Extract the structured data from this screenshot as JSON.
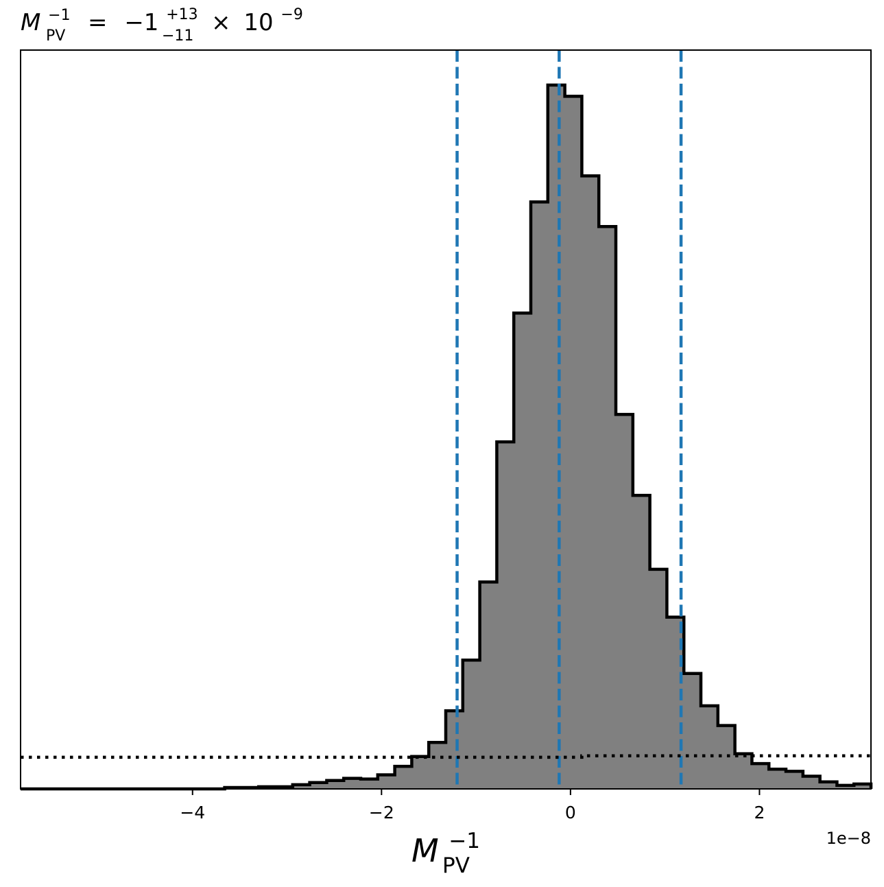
{
  "chart_data": {
    "type": "histogram",
    "title": {
      "symbol": "M",
      "sub": "PV",
      "sup": "−1",
      "equals": "=",
      "value": "−1",
      "upper": "+13",
      "lower": "−11",
      "times": "×",
      "base": "10",
      "exponent": "−9"
    },
    "xlabel": {
      "symbol": "M",
      "sub": "PV",
      "sup": "−1"
    },
    "x_offset_label": "1e−8",
    "ylabel": "",
    "xlim": [
      -5.82,
      3.18
    ],
    "x_ticks": [
      -4,
      -2,
      0,
      2
    ],
    "x_tick_labels": [
      "−4",
      "−2",
      "0",
      "2"
    ],
    "y_ticks_shown": false,
    "units_note": "x values in units of 1e-8; y values are relative counts (peak = 1.0)",
    "bin_edges": [
      -5.82,
      -5.64,
      -5.46,
      -5.28,
      -5.1,
      -4.92,
      -4.74,
      -4.56,
      -4.38,
      -4.2,
      -4.02,
      -3.84,
      -3.66,
      -3.48,
      -3.3,
      -3.12,
      -2.94,
      -2.76,
      -2.58,
      -2.4,
      -2.22,
      -2.04,
      -1.86,
      -1.68,
      -1.5,
      -1.32,
      -1.14,
      -0.96,
      -0.78,
      -0.6,
      -0.42,
      -0.24,
      -0.06,
      0.12,
      0.3,
      0.48,
      0.66,
      0.84,
      1.02,
      1.2,
      1.38,
      1.56,
      1.74,
      1.92,
      2.1,
      2.28,
      2.46,
      2.64,
      2.82,
      3.0,
      3.18
    ],
    "counts": [
      0.0,
      0.0,
      0.0,
      0.0,
      0.0,
      0.0,
      0.0,
      0.0,
      0.0,
      0.0,
      0.0,
      0.0,
      0.002,
      0.002,
      0.003,
      0.003,
      0.006,
      0.009,
      0.012,
      0.015,
      0.014,
      0.02,
      0.032,
      0.046,
      0.066,
      0.111,
      0.183,
      0.294,
      0.493,
      0.676,
      0.834,
      1.0,
      0.984,
      0.871,
      0.799,
      0.532,
      0.417,
      0.312,
      0.244,
      0.164,
      0.118,
      0.09,
      0.05,
      0.036,
      0.028,
      0.025,
      0.018,
      0.01,
      0.005,
      0.007
    ],
    "fill_color": "#808080",
    "edge_color": "#000000",
    "vlines": [
      {
        "x": -1.2,
        "style": "dashed",
        "color": "#1f77b4"
      },
      {
        "x": -0.12,
        "style": "dashed",
        "color": "#1f77b4"
      },
      {
        "x": 1.17,
        "style": "dashed",
        "color": "#1f77b4"
      }
    ],
    "prior_line": {
      "style": "dotted",
      "color": "#000000",
      "points": [
        [
          -5.82,
          0.045
        ],
        [
          0.12,
          0.045
        ],
        [
          0.12,
          0.047
        ],
        [
          3.18,
          0.047
        ]
      ]
    },
    "grid": false,
    "legend": "none"
  }
}
